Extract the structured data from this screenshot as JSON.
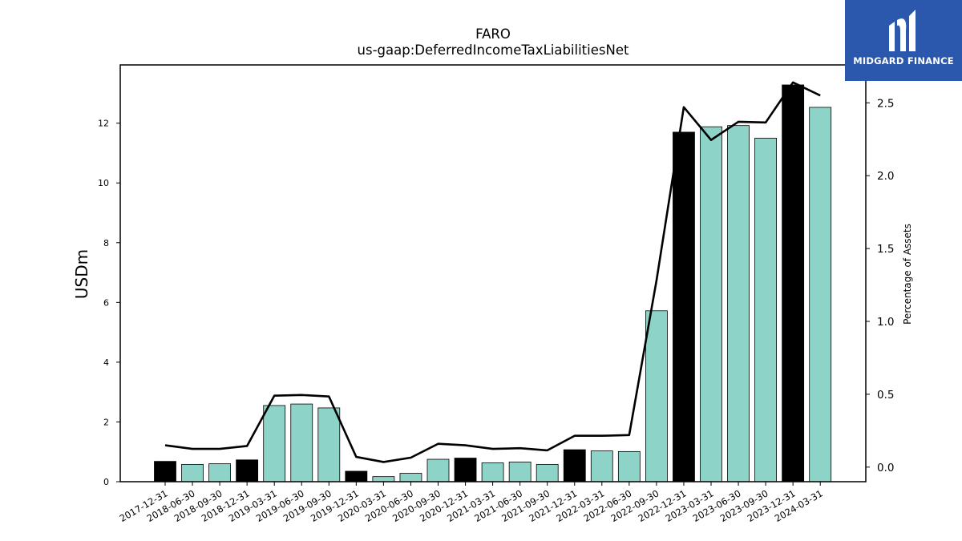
{
  "chart_data": {
    "type": "bar",
    "title": "FARO",
    "subtitle": "us-gaap:DeferredIncomeTaxLiabilitiesNet",
    "ylabel": "USDm",
    "y2label": "Percentage of Assets",
    "ylim": [
      0,
      13.95
    ],
    "y2lim": [
      -0.1,
      2.76
    ],
    "yticks": [
      0,
      2,
      4,
      6,
      8,
      10,
      12
    ],
    "y2ticks": [
      0.0,
      0.5,
      1.0,
      1.5,
      2.0,
      2.5
    ],
    "categories": [
      "2017-12-31",
      "2018-06-30",
      "2018-09-30",
      "2018-12-31",
      "2019-03-31",
      "2019-06-30",
      "2019-09-30",
      "2019-12-31",
      "2020-03-31",
      "2020-06-30",
      "2020-09-30",
      "2020-12-31",
      "2021-03-31",
      "2021-06-30",
      "2021-09-30",
      "2021-12-31",
      "2022-03-31",
      "2022-06-30",
      "2022-09-30",
      "2022-12-31",
      "2023-03-31",
      "2023-06-30",
      "2023-09-30",
      "2023-12-31",
      "2024-03-31"
    ],
    "series": [
      {
        "type": "bar",
        "values": [
          0.68,
          0.58,
          0.6,
          0.73,
          2.55,
          2.6,
          2.47,
          0.35,
          0.17,
          0.28,
          0.75,
          0.79,
          0.63,
          0.66,
          0.58,
          1.07,
          1.03,
          1.01,
          5.72,
          11.7,
          11.88,
          11.92,
          11.5,
          13.28,
          12.53
        ],
        "annual": [
          true,
          false,
          false,
          true,
          false,
          false,
          false,
          true,
          false,
          false,
          false,
          true,
          false,
          false,
          false,
          true,
          false,
          false,
          false,
          true,
          false,
          false,
          false,
          true,
          false
        ]
      },
      {
        "type": "line",
        "axis": "right",
        "values": [
          0.15,
          0.125,
          0.125,
          0.145,
          0.49,
          0.495,
          0.485,
          0.07,
          0.035,
          0.065,
          0.16,
          0.15,
          0.125,
          0.13,
          0.115,
          0.215,
          0.215,
          0.22,
          1.28,
          2.47,
          2.245,
          2.37,
          2.365,
          2.64,
          2.55
        ]
      }
    ],
    "colors": {
      "annual_bar": "#000000",
      "quarter_bar": "#8dd3c7",
      "bar_edge": "#000000",
      "line": "#000000"
    }
  },
  "logo": {
    "text": "MIDGARD FINANCE",
    "background": "#2b57ad",
    "icon": "midgard-logo-icon"
  }
}
